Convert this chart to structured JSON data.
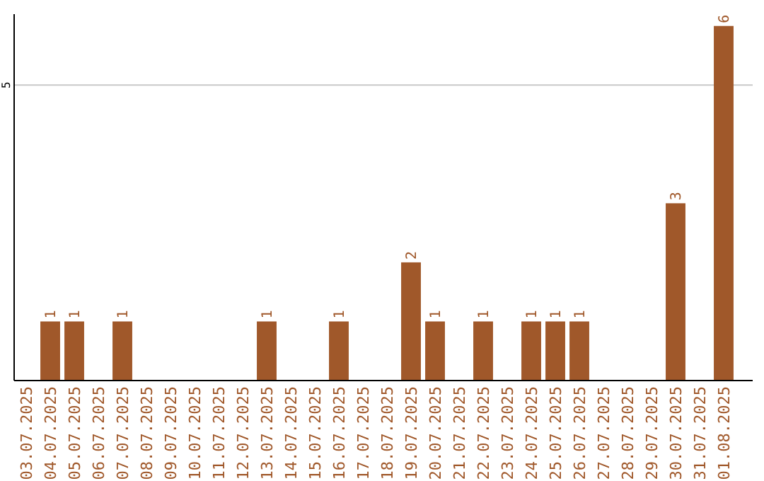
{
  "chart_data": {
    "type": "bar",
    "categories": [
      "03.07.2025",
      "04.07.2025",
      "05.07.2025",
      "06.07.2025",
      "07.07.2025",
      "08.07.2025",
      "09.07.2025",
      "10.07.2025",
      "11.07.2025",
      "12.07.2025",
      "13.07.2025",
      "14.07.2025",
      "15.07.2025",
      "16.07.2025",
      "17.07.2025",
      "18.07.2025",
      "19.07.2025",
      "20.07.2025",
      "21.07.2025",
      "22.07.2025",
      "23.07.2025",
      "24.07.2025",
      "25.07.2025",
      "26.07.2025",
      "27.07.2025",
      "28.07.2025",
      "29.07.2025",
      "30.07.2025",
      "31.07.2025",
      "01.08.2025"
    ],
    "values": [
      0,
      1,
      1,
      0,
      1,
      0,
      0,
      0,
      0,
      0,
      1,
      0,
      0,
      1,
      0,
      0,
      2,
      1,
      0,
      1,
      0,
      1,
      1,
      1,
      0,
      0,
      0,
      3,
      0,
      6
    ],
    "value_labels": [
      null,
      "1",
      "1",
      null,
      "1",
      null,
      null,
      null,
      null,
      null,
      "1",
      null,
      null,
      "1",
      null,
      null,
      "2",
      "1",
      null,
      "1",
      null,
      "1",
      "1",
      "1",
      null,
      null,
      null,
      "3",
      null,
      "6"
    ],
    "color": "#a0582a",
    "ylim": [
      0,
      6.2
    ],
    "yticks": [
      5
    ],
    "grid": "y"
  }
}
